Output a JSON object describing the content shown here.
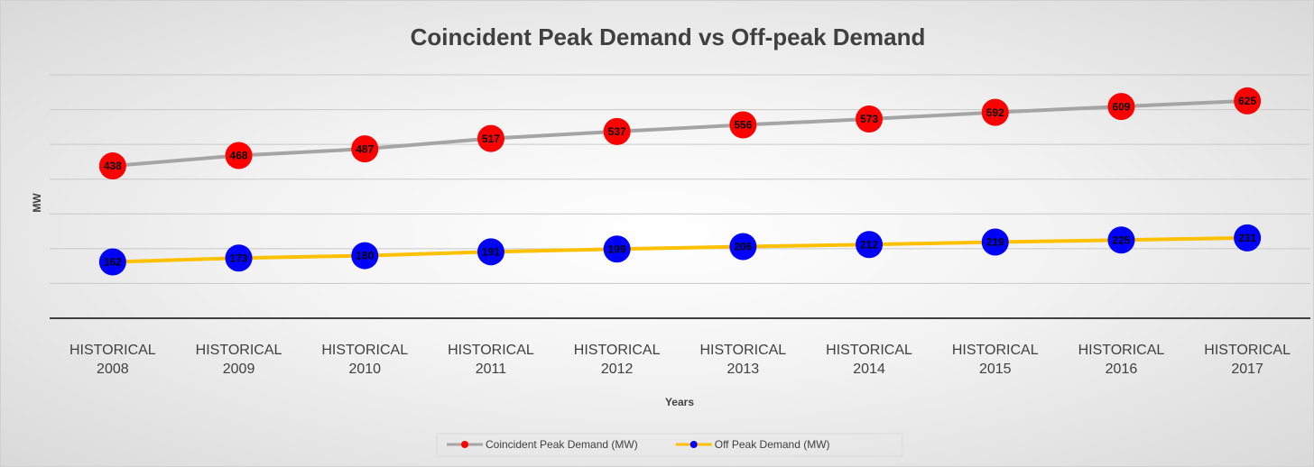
{
  "chart_data": {
    "type": "line",
    "title": "Coincident Peak Demand vs Off-peak Demand",
    "y_label": "MW",
    "x_label": "Years",
    "categories": [
      "HISTORICAL 2008",
      "HISTORICAL 2009",
      "HISTORICAL 2010",
      "HISTORICAL 2011",
      "HISTORICAL 2012",
      "HISTORICAL 2013",
      "HISTORICAL 2014",
      "HISTORICAL 2015",
      "HISTORICAL 2016",
      "HISTORICAL 2017"
    ],
    "series": [
      {
        "name": "Coincident Peak Demand (MW)",
        "color": "#a5a5a5",
        "marker_color": "#ff0000",
        "values": [
          438,
          468,
          487,
          517,
          537,
          556,
          573,
          592,
          609,
          625
        ]
      },
      {
        "name": "Off Peak Demand (MW)",
        "color": "#ffc000",
        "marker_color": "#0000ff",
        "values": [
          162,
          173,
          180,
          191,
          199,
          206,
          212,
          219,
          225,
          231
        ]
      }
    ],
    "ylim": [
      0,
      700
    ],
    "yticks": [
      0,
      100,
      200,
      300,
      400,
      500,
      600,
      700
    ],
    "grid": true,
    "legend": "bottom"
  }
}
